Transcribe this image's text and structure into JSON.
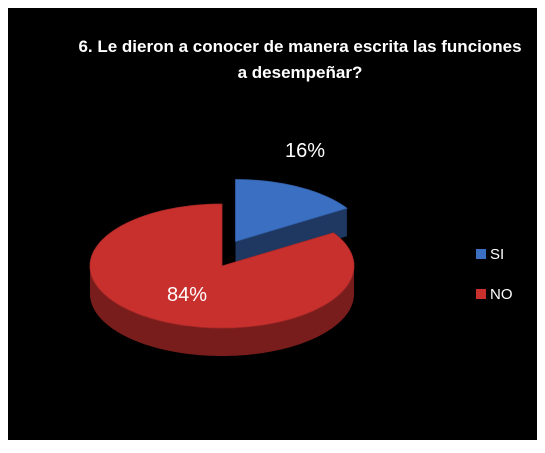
{
  "chart_data": {
    "type": "pie",
    "title": "6. Le dieron a conocer de manera escrita las funciones a desempeñar?",
    "categories": [
      "SI",
      "NO"
    ],
    "values": [
      16,
      84
    ],
    "value_labels": [
      "16%",
      "84%"
    ],
    "colors": [
      "#3b6fc2",
      "#c8302e"
    ],
    "legend": "right",
    "explode": [
      0,
      1
    ]
  }
}
